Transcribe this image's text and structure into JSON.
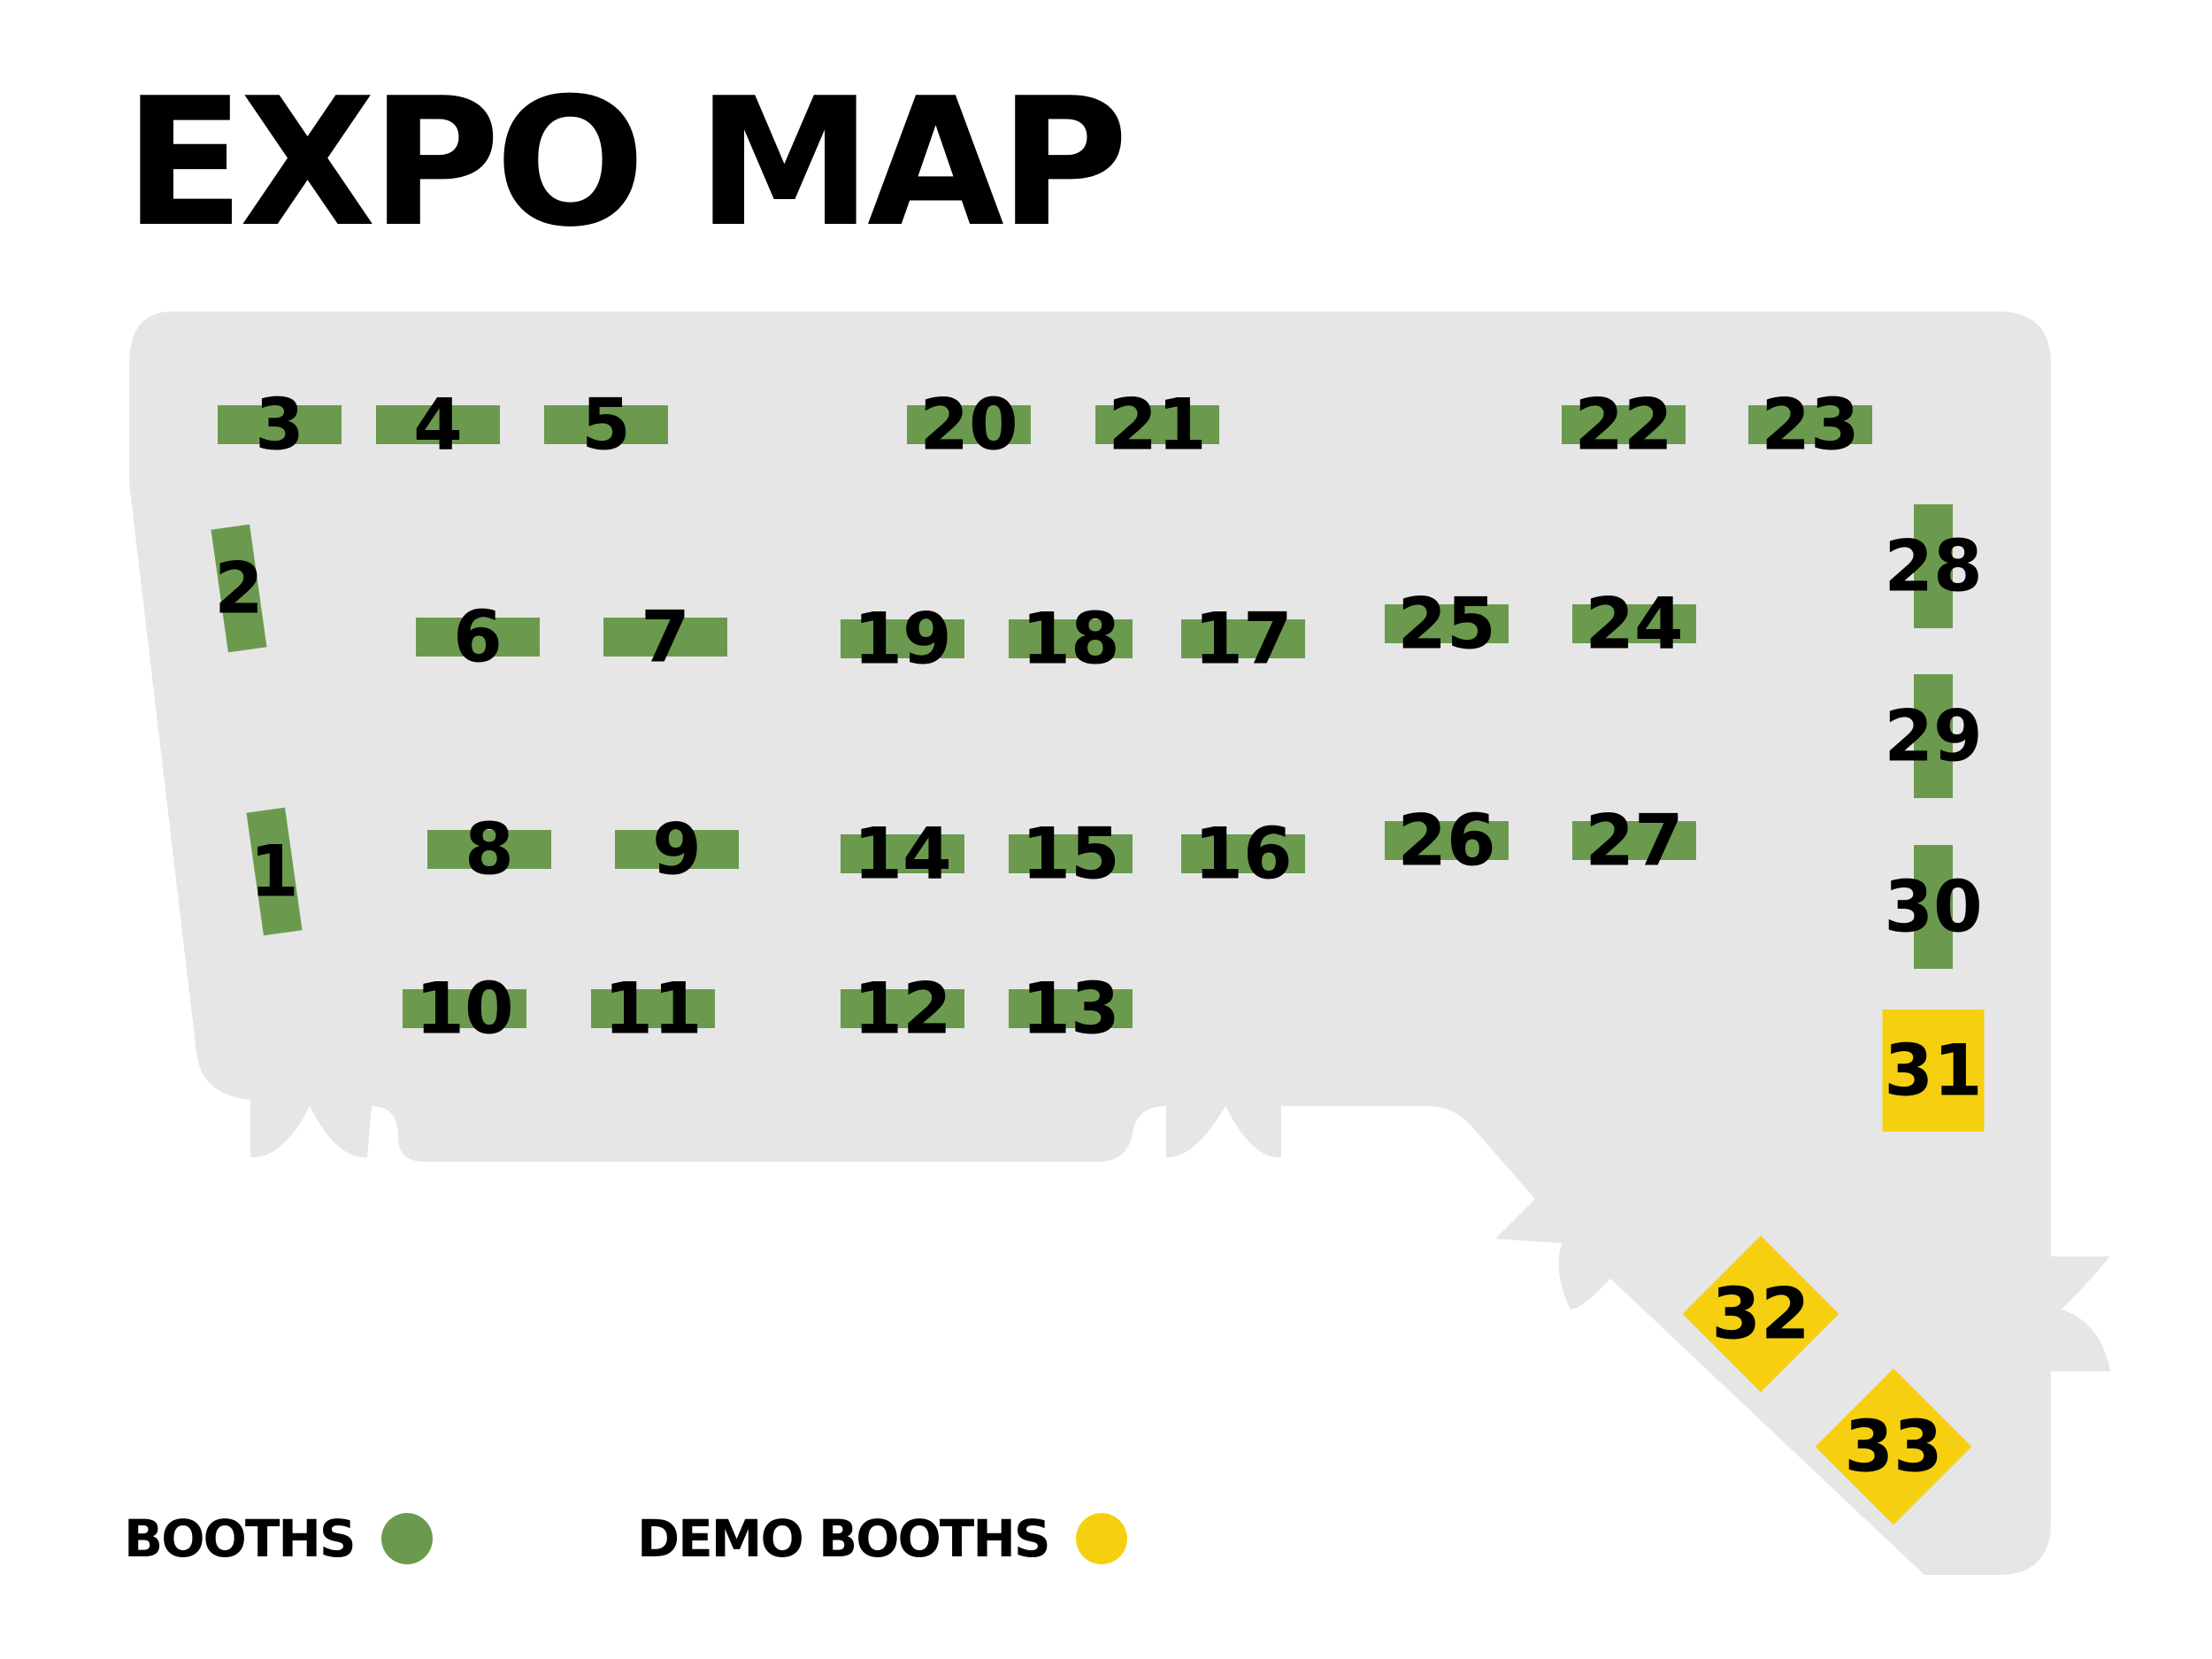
{
  "title": "EXPO MAP",
  "colors": {
    "floor": "#e6e6e6",
    "booth": "#6b9a4f",
    "demo": "#f6d010",
    "text": "#000000"
  },
  "legend": {
    "booths_label": "BOOTHS",
    "demo_booths_label": "DEMO BOOTHS"
  },
  "booths": [
    {
      "label": "1",
      "type": "booth"
    },
    {
      "label": "2",
      "type": "booth"
    },
    {
      "label": "3",
      "type": "booth"
    },
    {
      "label": "4",
      "type": "booth"
    },
    {
      "label": "5",
      "type": "booth"
    },
    {
      "label": "6",
      "type": "booth"
    },
    {
      "label": "7",
      "type": "booth"
    },
    {
      "label": "8",
      "type": "booth"
    },
    {
      "label": "9",
      "type": "booth"
    },
    {
      "label": "10",
      "type": "booth"
    },
    {
      "label": "11",
      "type": "booth"
    },
    {
      "label": "12",
      "type": "booth"
    },
    {
      "label": "13",
      "type": "booth"
    },
    {
      "label": "14",
      "type": "booth"
    },
    {
      "label": "15",
      "type": "booth"
    },
    {
      "label": "16",
      "type": "booth"
    },
    {
      "label": "17",
      "type": "booth"
    },
    {
      "label": "18",
      "type": "booth"
    },
    {
      "label": "19",
      "type": "booth"
    },
    {
      "label": "20",
      "type": "booth"
    },
    {
      "label": "21",
      "type": "booth"
    },
    {
      "label": "22",
      "type": "booth"
    },
    {
      "label": "23",
      "type": "booth"
    },
    {
      "label": "24",
      "type": "booth"
    },
    {
      "label": "25",
      "type": "booth"
    },
    {
      "label": "26",
      "type": "booth"
    },
    {
      "label": "27",
      "type": "booth"
    },
    {
      "label": "28",
      "type": "booth"
    },
    {
      "label": "29",
      "type": "booth"
    },
    {
      "label": "30",
      "type": "booth"
    },
    {
      "label": "31",
      "type": "demo"
    },
    {
      "label": "32",
      "type": "demo"
    },
    {
      "label": "33",
      "type": "demo"
    }
  ]
}
